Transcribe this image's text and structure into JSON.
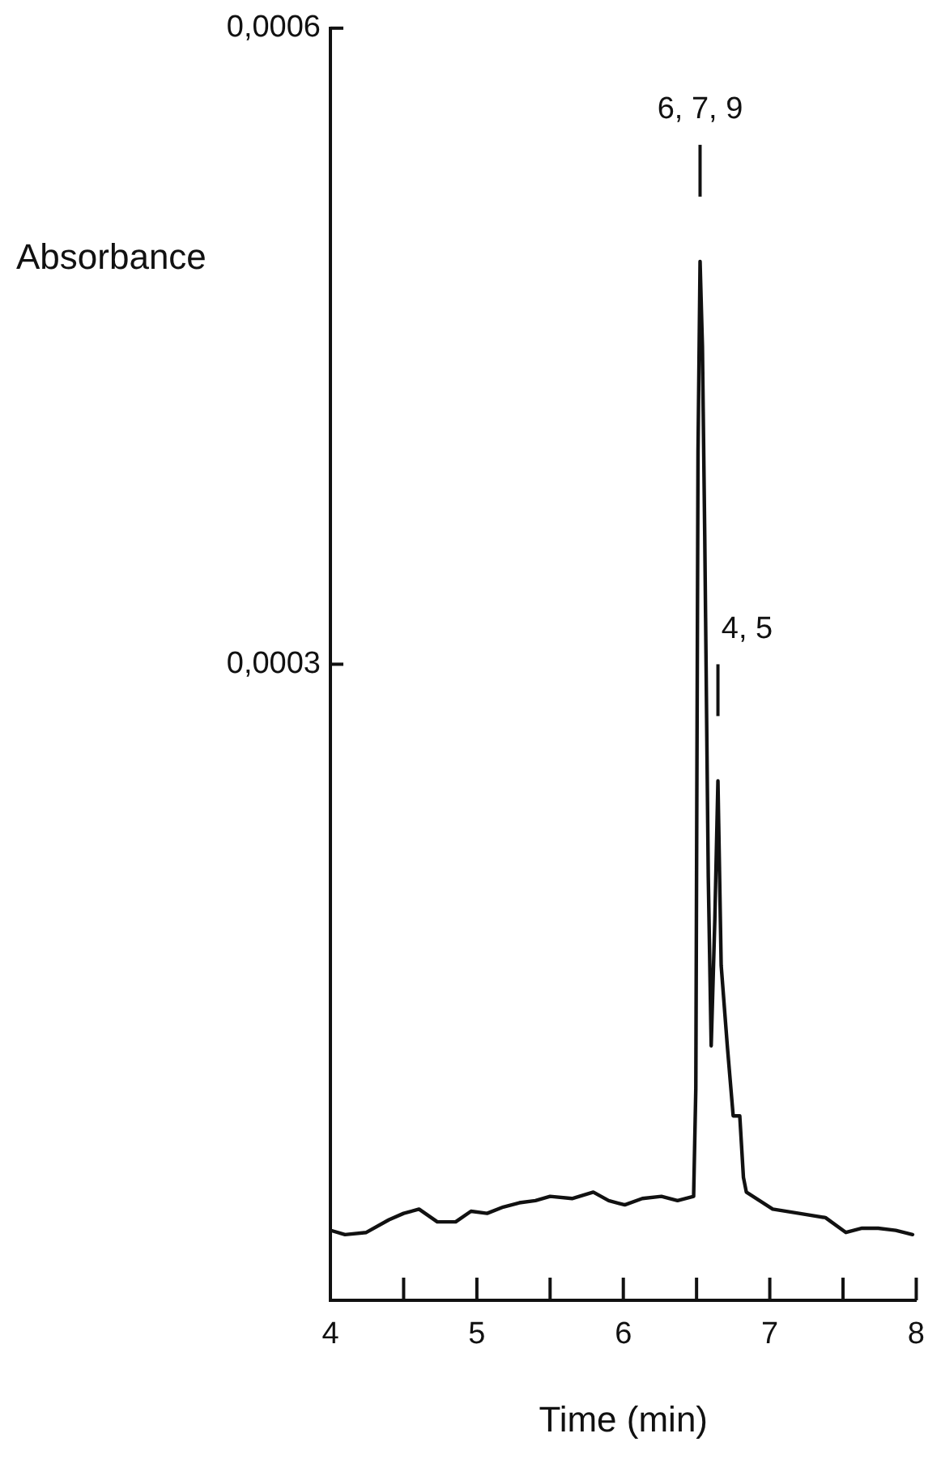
{
  "chart_data": {
    "type": "line",
    "xlabel": "Time (min)",
    "ylabel": "Absorbance",
    "x": [
      4.0,
      4.1,
      4.245,
      4.4,
      4.5,
      4.605,
      4.73,
      4.855,
      4.96,
      5.07,
      5.18,
      5.29,
      5.4,
      5.5,
      5.65,
      5.795,
      5.9,
      6.01,
      6.13,
      6.26,
      6.37,
      6.48,
      6.495,
      6.51,
      6.524,
      6.54,
      6.556,
      6.58,
      6.6,
      6.625,
      6.646,
      6.668,
      6.71,
      6.75,
      6.795,
      6.82,
      6.84,
      6.93,
      7.02,
      7.2,
      7.38,
      7.52,
      7.63,
      7.74,
      7.86,
      7.975
    ],
    "series": [
      {
        "color": "#111111",
        "values": [
          3.3e-05,
          3.1e-05,
          3.2e-05,
          3.8e-05,
          4.1e-05,
          4.3e-05,
          3.7e-05,
          3.7e-05,
          4.2e-05,
          4.1e-05,
          4.4e-05,
          4.6e-05,
          4.7e-05,
          4.9e-05,
          4.8e-05,
          5.1e-05,
          4.7e-05,
          4.5e-05,
          4.8e-05,
          4.9e-05,
          4.7e-05,
          4.9e-05,
          0.0001,
          0.0004,
          0.00049,
          0.00045,
          0.00036,
          0.0002,
          0.00012,
          0.00018,
          0.000245,
          0.000158,
          0.00012,
          8.7e-05,
          8.7e-05,
          5.8e-05,
          5.1e-05,
          4.7e-05,
          4.3e-05,
          4.1e-05,
          3.9e-05,
          3.2e-05,
          3.4e-05,
          3.4e-05,
          3.3e-05,
          3.1e-05
        ]
      }
    ],
    "xlim": [
      4,
      8
    ],
    "xticks": [
      4,
      {
        "value": 4.5,
        "label": null
      },
      5,
      {
        "value": 5.5,
        "label": null
      },
      6,
      {
        "value": 6.5,
        "label": null
      },
      7,
      {
        "value": 7.5,
        "label": null
      },
      8
    ],
    "ylim": [
      0,
      0.0006
    ],
    "yticks": [
      {
        "value": 0.0003,
        "label": "0,0003"
      },
      {
        "value": 0.0006,
        "label": "0,0006"
      }
    ],
    "annotations": [
      "6, 7, 9",
      "4, 5"
    ],
    "grid": false,
    "legend": false,
    "marker": "none",
    "line_style": "solid"
  }
}
